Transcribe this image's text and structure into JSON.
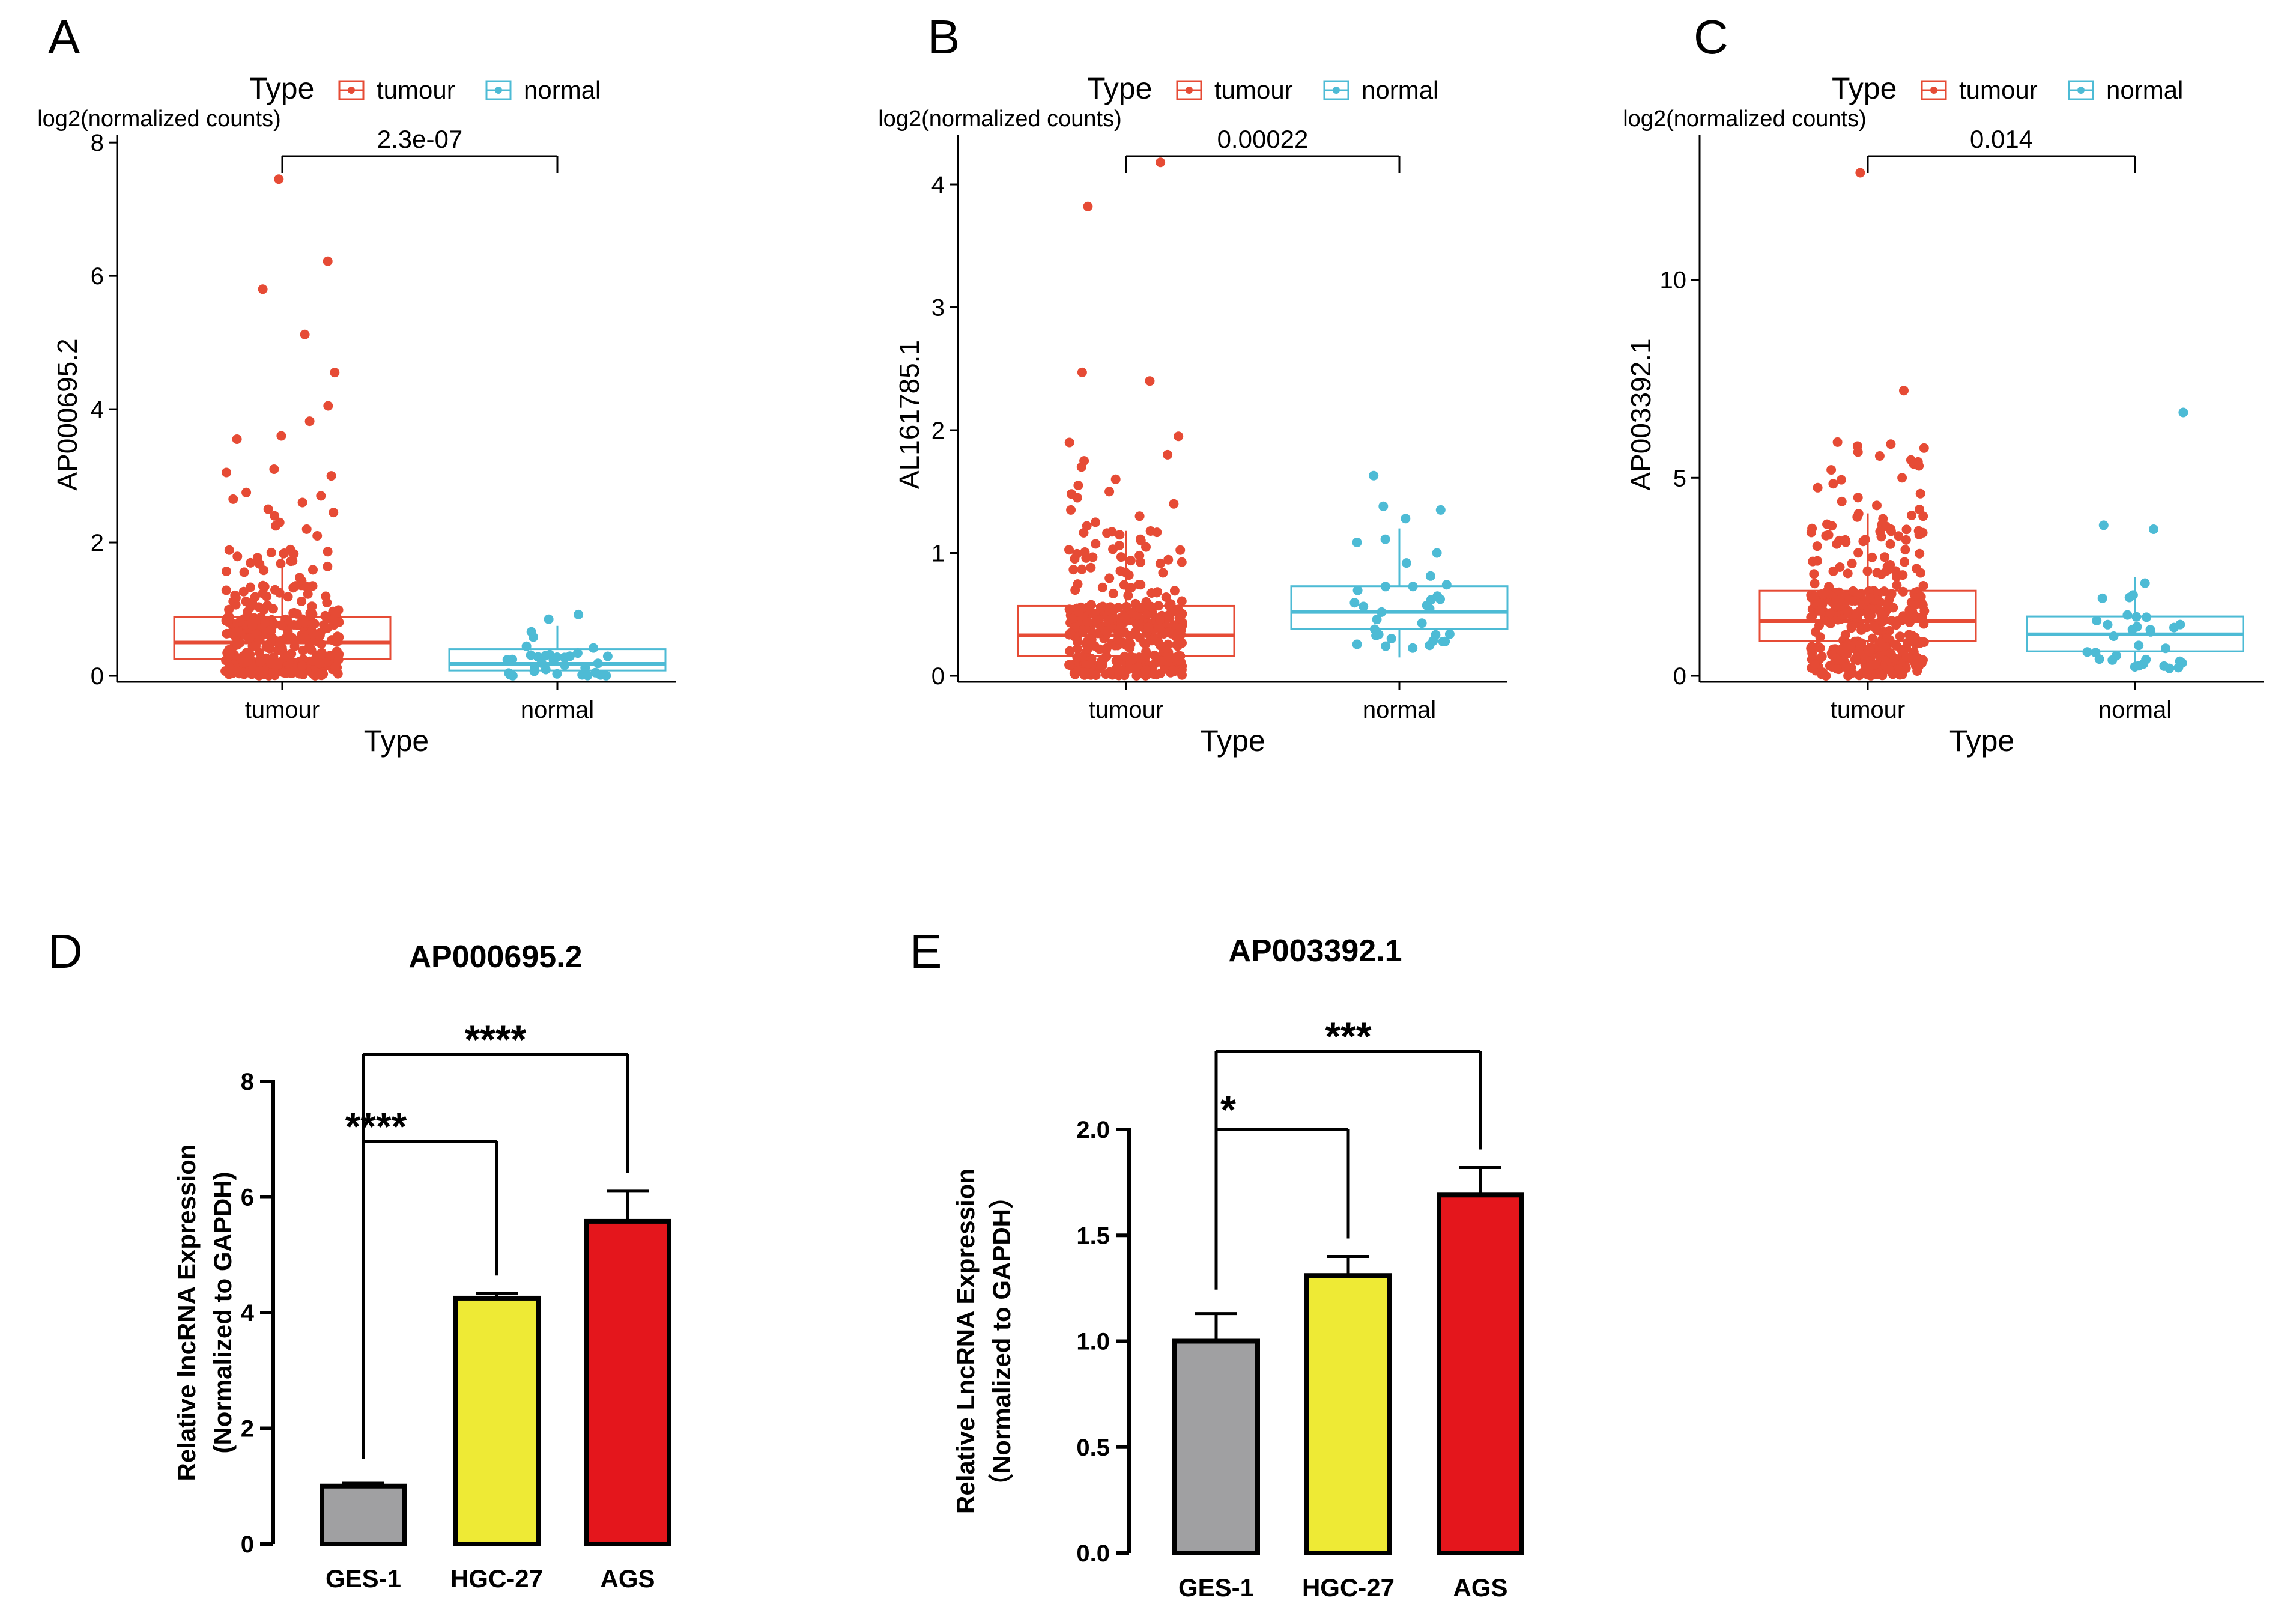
{
  "colors": {
    "tumour": "#E64B35",
    "normal": "#4DBBD5",
    "axis": "#000000",
    "ges1": "#A0A0A2",
    "hgc27": "#EEEA35",
    "ags": "#E4161C"
  },
  "chart_data": [
    {
      "type": "scatter",
      "subtype": "boxplot-with-jitter",
      "panel_label": "A",
      "legend_title": "Type",
      "legend_position": "top",
      "legend": [
        "tumour",
        "normal"
      ],
      "y_title": "log2(normalized counts)",
      "ylabel": "AP000695.2",
      "xlabel": "Type",
      "categories": [
        "tumour",
        "normal"
      ],
      "ylim": [
        0,
        8.2
      ],
      "yticks": [
        0,
        2,
        4,
        6,
        8
      ],
      "ytick_labels": [
        "0",
        "2",
        "4",
        "6",
        "8"
      ],
      "boxes": [
        {
          "name": "tumour",
          "q1": 0.25,
          "median": 0.5,
          "q3": 0.88,
          "whisker_low": 0,
          "whisker_high": 1.9,
          "n": 375
        },
        {
          "name": "normal",
          "q1": 0.08,
          "median": 0.18,
          "q3": 0.4,
          "whisker_low": 0,
          "whisker_high": 0.75,
          "n": 32
        }
      ],
      "outliers_tumour": [
        7.45,
        6.22,
        5.8,
        5.12,
        4.55,
        4.05,
        3.82,
        3.6,
        3.55,
        3.1,
        3.05,
        3.0,
        2.75,
        2.7,
        2.65,
        2.6,
        2.5,
        2.45,
        2.4,
        2.3,
        2.25,
        2.2,
        2.1
      ],
      "outliers_normal": [
        0.92,
        0.85
      ],
      "significance": "2.3e-07"
    },
    {
      "type": "scatter",
      "subtype": "boxplot-with-jitter",
      "panel_label": "B",
      "legend_title": "Type",
      "legend_position": "top",
      "legend": [
        "tumour",
        "normal"
      ],
      "y_title": "log2(normalized counts)",
      "ylabel": "AL161785.1",
      "xlabel": "Type",
      "categories": [
        "tumour",
        "normal"
      ],
      "ylim": [
        0,
        4.45
      ],
      "yticks": [
        0,
        1,
        2,
        3,
        4
      ],
      "ytick_labels": [
        "0",
        "1",
        "2",
        "3",
        "4"
      ],
      "boxes": [
        {
          "name": "tumour",
          "q1": 0.16,
          "median": 0.33,
          "q3": 0.57,
          "whisker_low": 0,
          "whisker_high": 1.18,
          "n": 375
        },
        {
          "name": "normal",
          "q1": 0.38,
          "median": 0.52,
          "q3": 0.73,
          "whisker_low": 0.15,
          "whisker_high": 1.2,
          "n": 32
        }
      ],
      "outliers_tumour": [
        4.18,
        3.82,
        2.47,
        2.4,
        1.95,
        1.9,
        1.8,
        1.75,
        1.7,
        1.6,
        1.55,
        1.5,
        1.48,
        1.45,
        1.4,
        1.35,
        1.3,
        1.25,
        1.22
      ],
      "outliers_normal": [
        1.63,
        1.38,
        1.35,
        1.28
      ],
      "significance": "0.00022"
    },
    {
      "type": "scatter",
      "subtype": "boxplot-with-jitter",
      "panel_label": "C",
      "legend_title": "Type",
      "legend_position": "top",
      "legend": [
        "tumour",
        "normal"
      ],
      "y_title": "log2(normalized counts)",
      "ylabel": "AP003392.1",
      "xlabel": "Type",
      "categories": [
        "tumour",
        "normal"
      ],
      "ylim": [
        0,
        13.8
      ],
      "yticks": [
        0,
        5,
        10
      ],
      "ytick_labels": [
        "0",
        "5",
        "10"
      ],
      "boxes": [
        {
          "name": "tumour",
          "q1": 0.88,
          "median": 1.38,
          "q3": 2.15,
          "whisker_low": 0,
          "whisker_high": 4.1,
          "n": 375
        },
        {
          "name": "normal",
          "q1": 0.62,
          "median": 1.05,
          "q3": 1.5,
          "whisker_low": 0.1,
          "whisker_high": 2.5,
          "n": 32
        }
      ],
      "outliers_tumour": [
        12.7,
        7.2,
        5.9,
        5.85,
        5.8,
        5.75,
        5.65,
        5.55,
        5.45,
        5.4,
        5.35,
        5.3,
        5.2,
        5.0,
        4.95,
        4.85,
        4.75,
        4.6,
        4.5,
        4.4,
        4.3,
        4.2
      ],
      "outliers_normal": [
        6.65,
        3.8,
        3.7
      ],
      "significance": "0.014"
    },
    {
      "type": "bar",
      "panel_label": "D",
      "title": "AP000695.2",
      "ylabel": "Relative lncRNA Expression",
      "ylabel2": "(Normalized to GAPDH)",
      "xlabel": "",
      "categories": [
        "GES-1",
        "HGC-27",
        "AGS"
      ],
      "values": [
        1.0,
        4.25,
        5.58
      ],
      "errors": [
        0.05,
        0.08,
        0.52
      ],
      "ylim": [
        0,
        8
      ],
      "yticks": [
        0,
        2,
        4,
        6,
        8
      ],
      "ytick_labels": [
        "0",
        "2",
        "4",
        "6",
        "8"
      ],
      "comparisons": [
        {
          "from": 0,
          "to": 1,
          "label": "****"
        },
        {
          "from": 0,
          "to": 2,
          "label": "****"
        }
      ]
    },
    {
      "type": "bar",
      "panel_label": "E",
      "title": "AP003392.1",
      "ylabel": "Relative LncRNA Expression",
      "ylabel2": "（Normalized to GAPDH）",
      "xlabel": "",
      "categories": [
        "GES-1",
        "HGC-27",
        "AGS"
      ],
      "values": [
        1.0,
        1.31,
        1.69
      ],
      "errors": [
        0.13,
        0.09,
        0.13
      ],
      "ylim": [
        0,
        2.0
      ],
      "yticks": [
        0,
        0.5,
        1.0,
        1.5,
        2.0
      ],
      "ytick_labels": [
        "0.0",
        "0.5",
        "1.0",
        "1.5",
        "2.0"
      ],
      "comparisons": [
        {
          "from": 0,
          "to": 1,
          "label": "*"
        },
        {
          "from": 0,
          "to": 2,
          "label": "***"
        }
      ]
    }
  ]
}
